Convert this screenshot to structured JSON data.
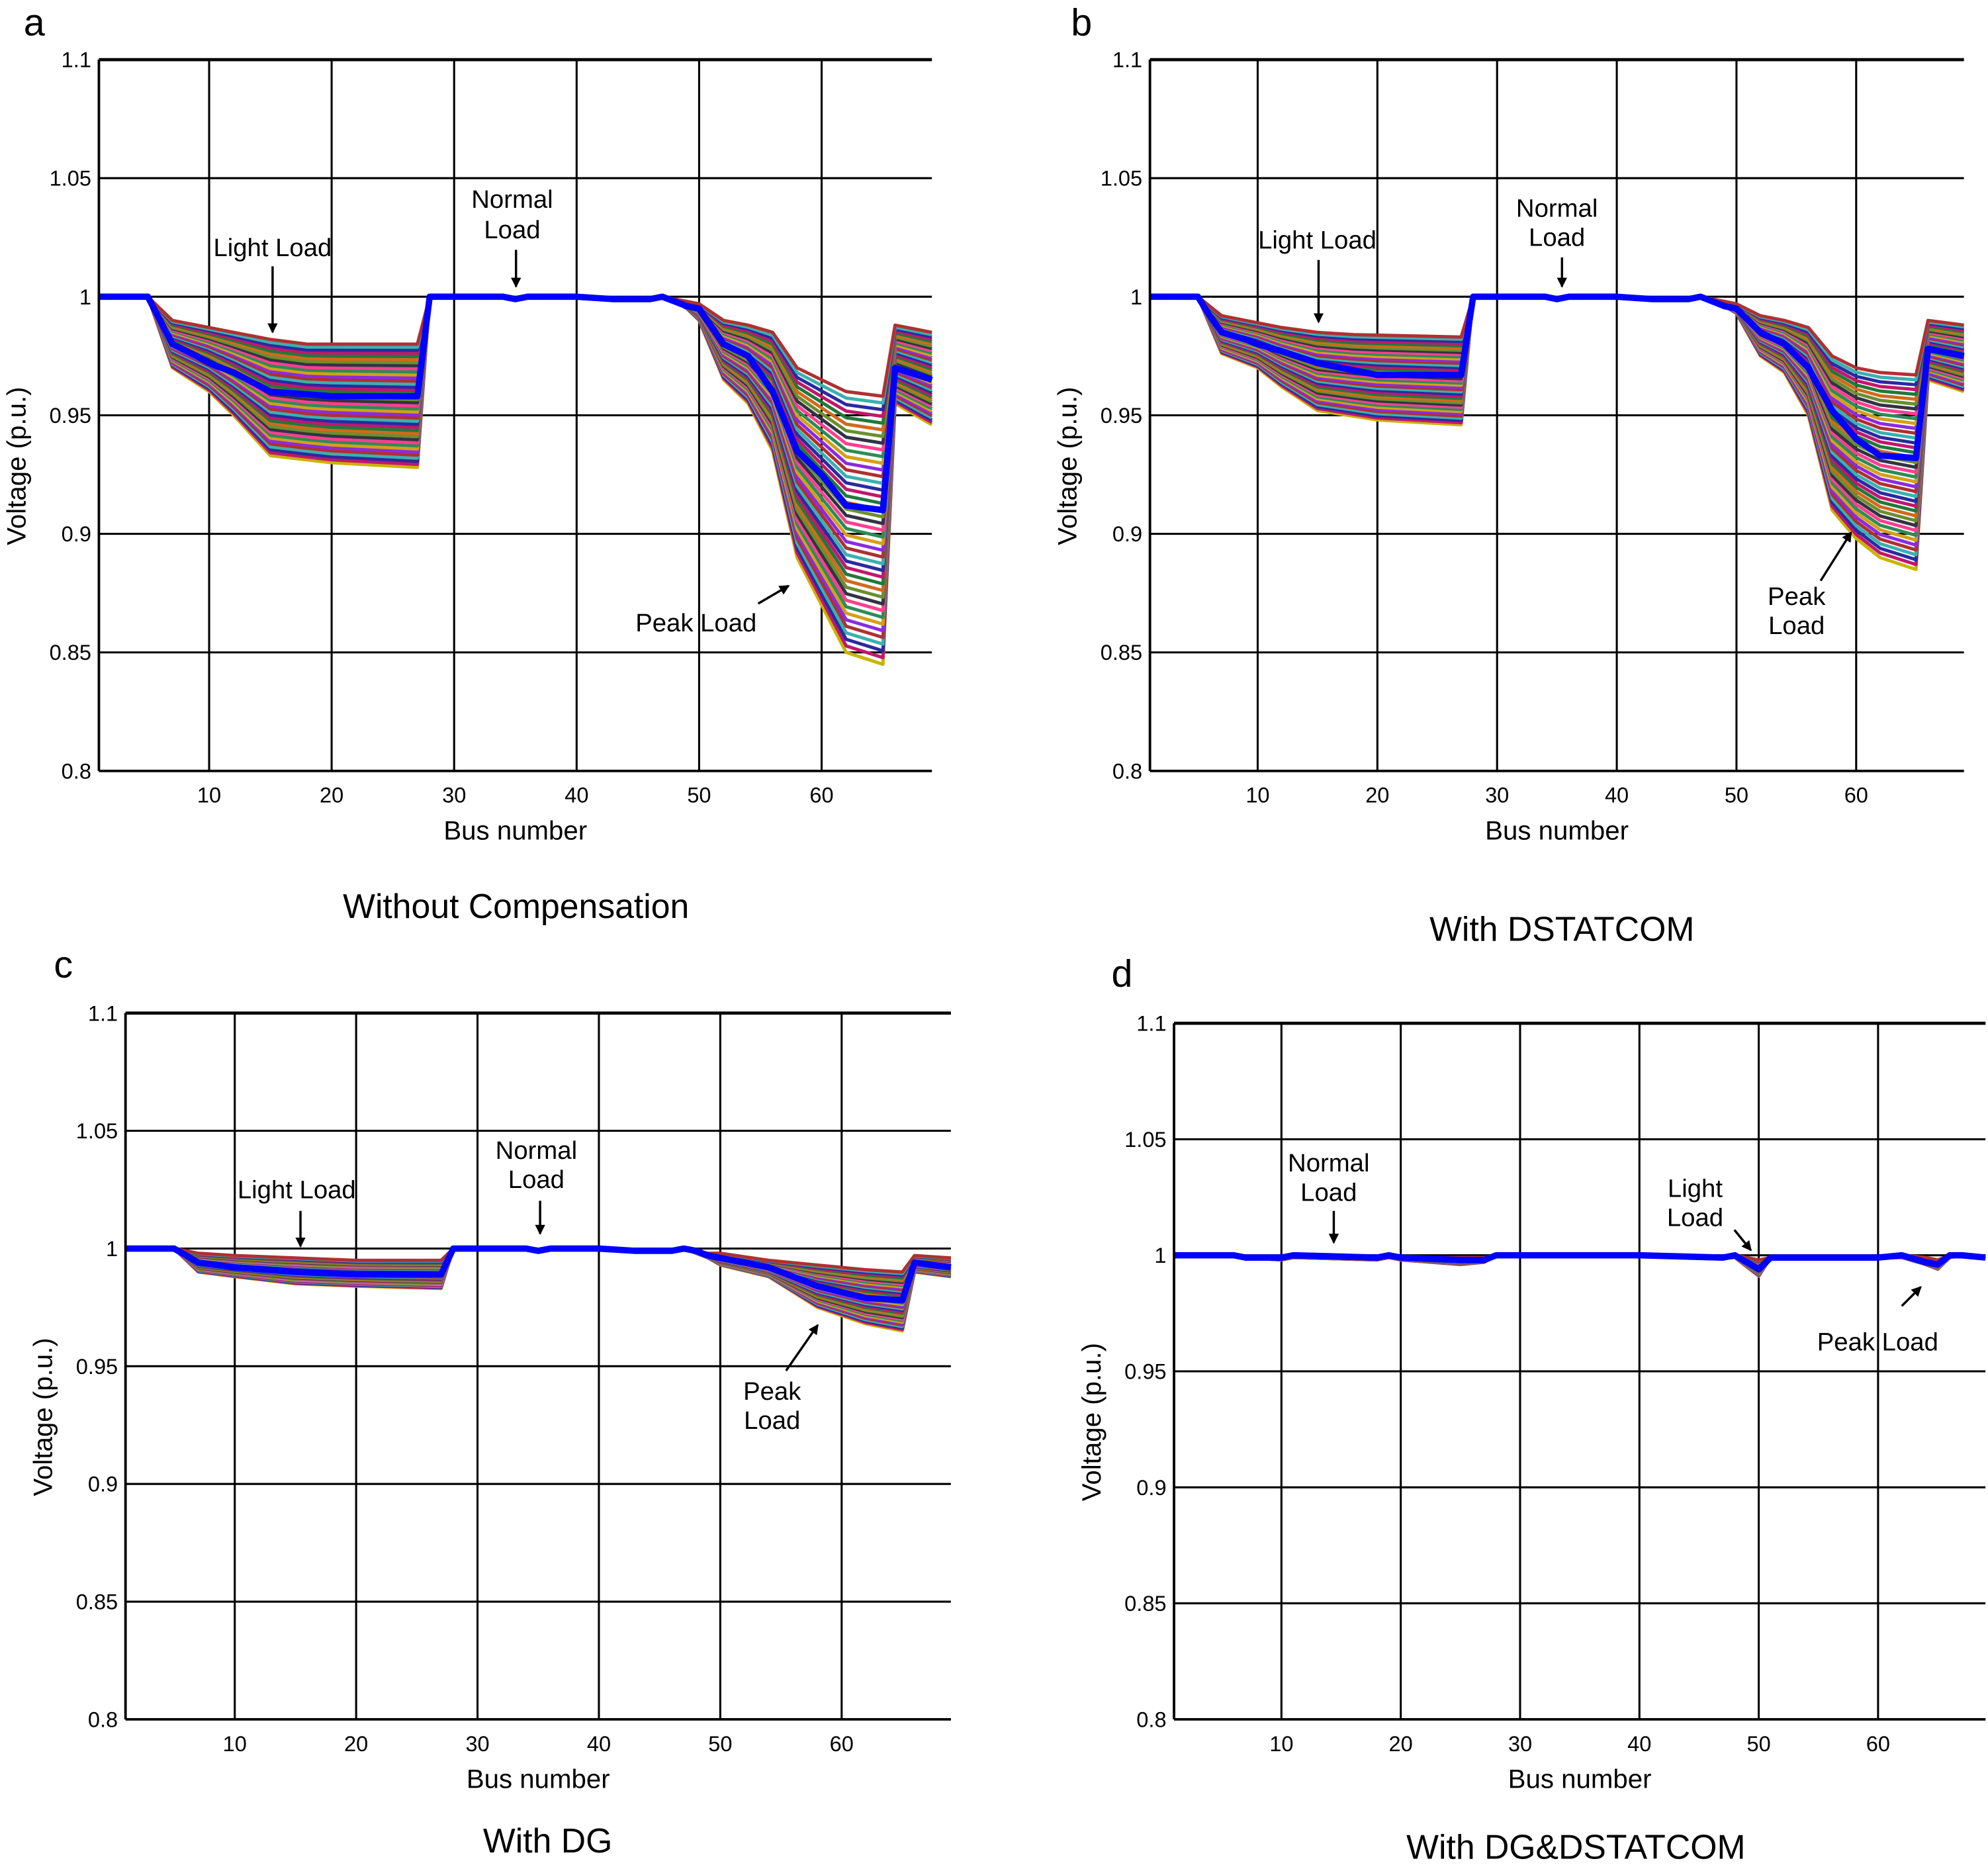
{
  "chart_data": [
    {
      "panel_label": "a",
      "caption": "Without Compensation",
      "type": "line",
      "xlabel": "Bus number",
      "ylabel": "Voltage (p.u.)",
      "xlim": [
        1,
        69
      ],
      "ylim": [
        0.8,
        1.1
      ],
      "xticks": [
        "10",
        "20",
        "30",
        "40",
        "50",
        "60"
      ],
      "yticks": [
        "0.8",
        "0.85",
        "0.9",
        "0.95",
        "1",
        "1.05",
        "1.1"
      ],
      "grid": true,
      "annotations": {
        "light": "Light Load",
        "normal": [
          "Normal",
          "Load"
        ],
        "peak": [
          "Peak Load"
        ]
      },
      "series": [
        {
          "role": "upper",
          "x": [
            1,
            5,
            6,
            7,
            10,
            12,
            15,
            18,
            27,
            28,
            34,
            35,
            36,
            40,
            43,
            46,
            47,
            48,
            49,
            50,
            52,
            54,
            56,
            58,
            60,
            62,
            65,
            66,
            69
          ],
          "y": [
            1,
            1,
            0.995,
            0.99,
            0.987,
            0.985,
            0.982,
            0.98,
            0.98,
            1,
            1,
            0.999,
            1,
            1,
            0.999,
            0.999,
            1,
            0.999,
            0.998,
            0.997,
            0.99,
            0.988,
            0.985,
            0.97,
            0.965,
            0.96,
            0.958,
            0.988,
            0.985
          ]
        },
        {
          "role": "lower",
          "x": [
            1,
            5,
            6,
            7,
            10,
            12,
            15,
            20,
            27,
            28,
            34,
            35,
            36,
            40,
            43,
            46,
            47,
            48,
            49,
            50,
            52,
            54,
            56,
            58,
            60,
            62,
            65,
            66,
            69
          ],
          "y": [
            1,
            1,
            0.985,
            0.97,
            0.96,
            0.95,
            0.933,
            0.93,
            0.928,
            1,
            1,
            0.999,
            1,
            1,
            0.999,
            0.999,
            1,
            0.998,
            0.995,
            0.99,
            0.965,
            0.955,
            0.935,
            0.89,
            0.87,
            0.85,
            0.845,
            0.955,
            0.946
          ]
        },
        {
          "role": "highlight",
          "color": "#0000ff",
          "x": [
            1,
            5,
            6,
            7,
            9,
            10,
            12,
            15,
            20,
            27,
            28,
            34,
            35,
            36,
            40,
            43,
            46,
            47,
            48,
            49,
            50,
            52,
            54,
            56,
            58,
            60,
            62,
            65,
            66,
            69
          ],
          "y": [
            1,
            1,
            0.99,
            0.98,
            0.975,
            0.972,
            0.968,
            0.96,
            0.958,
            0.958,
            1,
            1,
            0.999,
            1,
            1,
            0.999,
            0.999,
            1,
            0.998,
            0.996,
            0.995,
            0.98,
            0.975,
            0.96,
            0.935,
            0.925,
            0.912,
            0.91,
            0.97,
            0.965
          ]
        }
      ]
    },
    {
      "panel_label": "b",
      "caption": "With DSTATCOM",
      "type": "line",
      "xlabel": "Bus number",
      "ylabel": "Voltage (p.u.)",
      "xlim": [
        1,
        69
      ],
      "ylim": [
        0.8,
        1.1
      ],
      "xticks": [
        "10",
        "20",
        "30",
        "40",
        "50",
        "60"
      ],
      "yticks": [
        "0.8",
        "0.85",
        "0.9",
        "0.95",
        "1",
        "1.05",
        "1.1"
      ],
      "grid": true,
      "annotations": {
        "light": "Light Load",
        "normal": [
          "Normal",
          "Load"
        ],
        "peak": [
          "Peak",
          "Load"
        ]
      },
      "series": [
        {
          "role": "upper",
          "x": [
            1,
            5,
            6,
            7,
            10,
            12,
            15,
            18,
            27,
            28,
            34,
            35,
            36,
            40,
            43,
            46,
            47,
            48,
            49,
            50,
            52,
            54,
            56,
            58,
            60,
            62,
            65,
            66,
            69
          ],
          "y": [
            1,
            1,
            0.996,
            0.992,
            0.989,
            0.987,
            0.985,
            0.984,
            0.983,
            1,
            1,
            0.999,
            1,
            1,
            0.999,
            0.999,
            1,
            0.999,
            0.998,
            0.997,
            0.992,
            0.99,
            0.987,
            0.975,
            0.97,
            0.968,
            0.967,
            0.99,
            0.988
          ]
        },
        {
          "role": "lower",
          "x": [
            1,
            5,
            6,
            7,
            10,
            12,
            15,
            20,
            27,
            28,
            34,
            35,
            36,
            40,
            43,
            46,
            47,
            48,
            49,
            50,
            52,
            54,
            56,
            58,
            60,
            62,
            65,
            66,
            69
          ],
          "y": [
            1,
            1,
            0.988,
            0.976,
            0.97,
            0.962,
            0.952,
            0.948,
            0.946,
            1,
            1,
            0.999,
            1,
            1,
            0.999,
            0.999,
            1,
            0.998,
            0.996,
            0.993,
            0.975,
            0.968,
            0.95,
            0.91,
            0.898,
            0.89,
            0.885,
            0.965,
            0.96
          ]
        },
        {
          "role": "highlight",
          "color": "#0000ff",
          "x": [
            1,
            5,
            6,
            7,
            9,
            10,
            12,
            15,
            20,
            27,
            28,
            34,
            35,
            36,
            40,
            43,
            46,
            47,
            48,
            49,
            50,
            52,
            54,
            56,
            58,
            60,
            62,
            65,
            66,
            69
          ],
          "y": [
            1,
            1,
            0.992,
            0.985,
            0.982,
            0.98,
            0.977,
            0.972,
            0.967,
            0.967,
            1,
            1,
            0.999,
            1,
            1,
            0.999,
            0.999,
            1,
            0.998,
            0.996,
            0.995,
            0.985,
            0.98,
            0.97,
            0.952,
            0.94,
            0.933,
            0.932,
            0.978,
            0.975
          ]
        }
      ]
    },
    {
      "panel_label": "c",
      "caption": "With DG",
      "type": "line",
      "xlabel": "Bus number",
      "ylabel": "Voltage (p.u.)",
      "xlim": [
        1,
        69
      ],
      "ylim": [
        0.8,
        1.1
      ],
      "xticks": [
        "10",
        "20",
        "30",
        "40",
        "50",
        "60"
      ],
      "yticks": [
        "0.8",
        "0.85",
        "0.9",
        "0.95",
        "1",
        "1.05",
        "1.1"
      ],
      "grid": true,
      "annotations": {
        "light": "Light Load",
        "normal": [
          "Normal",
          "Load"
        ],
        "peak": [
          "Peak",
          "Load"
        ]
      },
      "series": [
        {
          "role": "upper",
          "x": [
            1,
            5,
            6,
            7,
            10,
            15,
            20,
            27,
            28,
            34,
            35,
            36,
            40,
            43,
            46,
            47,
            48,
            49,
            50,
            54,
            58,
            62,
            65,
            66,
            69
          ],
          "y": [
            1,
            1,
            0.999,
            0.998,
            0.997,
            0.996,
            0.995,
            0.995,
            1,
            1,
            0.999,
            1,
            1,
            0.999,
            0.999,
            1,
            0.999,
            0.998,
            0.998,
            0.995,
            0.993,
            0.991,
            0.99,
            0.997,
            0.996
          ]
        },
        {
          "role": "lower",
          "x": [
            1,
            5,
            6,
            7,
            10,
            15,
            20,
            27,
            28,
            34,
            35,
            36,
            40,
            43,
            46,
            47,
            48,
            49,
            50,
            54,
            58,
            62,
            65,
            66,
            69
          ],
          "y": [
            1,
            1,
            0.995,
            0.99,
            0.988,
            0.985,
            0.984,
            0.983,
            1,
            1,
            0.999,
            1,
            1,
            0.999,
            0.999,
            1,
            0.998,
            0.996,
            0.993,
            0.988,
            0.975,
            0.968,
            0.965,
            0.99,
            0.988
          ]
        },
        {
          "role": "highlight",
          "color": "#0000ff",
          "x": [
            1,
            5,
            6,
            7,
            10,
            15,
            20,
            27,
            28,
            34,
            35,
            36,
            40,
            43,
            46,
            47,
            48,
            49,
            50,
            54,
            58,
            62,
            65,
            66,
            69
          ],
          "y": [
            1,
            1,
            0.997,
            0.994,
            0.992,
            0.99,
            0.989,
            0.989,
            1,
            1,
            0.999,
            1,
            1,
            0.999,
            0.999,
            1,
            0.999,
            0.997,
            0.996,
            0.992,
            0.984,
            0.979,
            0.978,
            0.994,
            0.992
          ]
        }
      ]
    },
    {
      "panel_label": "d",
      "caption": "With DG&DSTATCOM",
      "type": "line",
      "xlabel": "Bus number",
      "ylabel": "Voltage (p.u.)",
      "xlim": [
        1,
        69
      ],
      "ylim": [
        0.8,
        1.1
      ],
      "xticks": [
        "10",
        "20",
        "30",
        "40",
        "50",
        "60"
      ],
      "yticks": [
        "0.8",
        "0.85",
        "0.9",
        "0.95",
        "1",
        "1.05",
        "1.1"
      ],
      "grid": true,
      "annotations": {
        "normal": [
          "Normal",
          "Load"
        ],
        "light": [
          "Light",
          "Load"
        ],
        "peak": [
          "Peak Load"
        ]
      },
      "series": [
        {
          "role": "upper",
          "x": [
            1,
            6,
            7,
            10,
            11,
            18,
            19,
            20,
            25,
            27,
            28,
            40,
            47,
            48,
            49,
            50,
            51,
            60,
            62,
            64,
            65,
            66,
            67,
            69
          ],
          "y": [
            1,
            1,
            0.999,
            0.999,
            1,
            0.999,
            1,
            0.999,
            0.999,
            0.999,
            1,
            1,
            0.999,
            1,
            0.999,
            0.998,
            0.999,
            0.999,
            1,
            0.999,
            0.998,
            1,
            1,
            0.999
          ]
        },
        {
          "role": "lower",
          "x": [
            1,
            6,
            7,
            10,
            11,
            18,
            19,
            20,
            25,
            27,
            28,
            40,
            47,
            48,
            49,
            50,
            51,
            60,
            62,
            64,
            65,
            66,
            67,
            69
          ],
          "y": [
            1,
            1,
            0.999,
            0.998,
            0.999,
            0.998,
            0.999,
            0.998,
            0.996,
            0.997,
            1,
            1,
            0.999,
            0.999,
            0.995,
            0.991,
            0.999,
            0.999,
            0.999,
            0.996,
            0.994,
            0.999,
            1,
            0.999
          ]
        },
        {
          "role": "highlight",
          "color": "#0000ff",
          "x": [
            1,
            6,
            7,
            10,
            11,
            18,
            19,
            20,
            25,
            27,
            28,
            40,
            47,
            48,
            49,
            50,
            51,
            60,
            62,
            64,
            65,
            66,
            67,
            69
          ],
          "y": [
            1,
            1,
            0.999,
            0.999,
            1,
            0.999,
            1,
            0.999,
            0.998,
            0.998,
            1,
            1,
            0.999,
            1,
            0.997,
            0.994,
            0.999,
            0.999,
            1,
            0.997,
            0.996,
            1,
            1,
            0.999
          ]
        }
      ]
    }
  ]
}
